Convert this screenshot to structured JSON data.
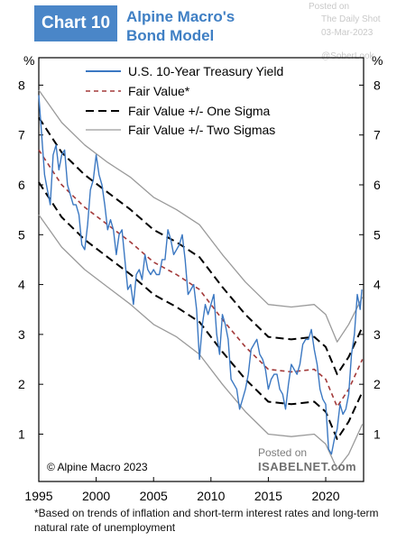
{
  "header": {
    "badge": "Chart 10",
    "title_line1": "Alpine Macro's",
    "title_line2": "Bond Model"
  },
  "watermark": {
    "posted_on": "Posted on",
    "site": "The Daily Shot",
    "date": "03-Mar-2023",
    "handle": "@SoberLook"
  },
  "isabelnet": {
    "posted_on": "Posted on",
    "brand": "ISABELNET.com"
  },
  "footnote": "*Based on trends of inflation and short-term interest rates and long-term natural rate of unemployment",
  "chart_data": {
    "type": "line",
    "title": "Alpine Macro's Bond Model",
    "ylabel_left": "%",
    "ylabel_right": "%",
    "xlim": [
      1995,
      2023.3
    ],
    "ylim": [
      0.05,
      8.55
    ],
    "x_ticks": [
      1995,
      2000,
      2005,
      2010,
      2015,
      2020
    ],
    "y_ticks": [
      1,
      2,
      3,
      4,
      5,
      6,
      7,
      8
    ],
    "source": "© Alpine Macro 2023",
    "legend": [
      {
        "label": "U.S. 10-Year Treasury Yield",
        "color": "#3b78c2",
        "style": "solid"
      },
      {
        "label": "Fair Value*",
        "color": "#a33a3a",
        "style": "dashed"
      },
      {
        "label": "Fair Value +/- One Sigma",
        "color": "#000000",
        "style": "long-dashed"
      },
      {
        "label": "Fair Value +/- Two Sigmas",
        "color": "#9a9a9a",
        "style": "solid"
      }
    ],
    "series": [
      {
        "name": "U.S. 10-Year Treasury Yield",
        "x": [
          1995.0,
          1995.25,
          1995.5,
          1995.75,
          1996.0,
          1996.25,
          1996.5,
          1996.75,
          1997.0,
          1997.25,
          1997.5,
          1997.75,
          1998.0,
          1998.25,
          1998.5,
          1998.75,
          1999.0,
          1999.25,
          1999.5,
          1999.75,
          2000.0,
          2000.25,
          2000.5,
          2000.75,
          2001.0,
          2001.25,
          2001.5,
          2001.75,
          2002.0,
          2002.25,
          2002.5,
          2002.75,
          2003.0,
          2003.25,
          2003.5,
          2003.75,
          2004.0,
          2004.25,
          2004.5,
          2004.75,
          2005.0,
          2005.25,
          2005.5,
          2005.75,
          2006.0,
          2006.25,
          2006.5,
          2006.75,
          2007.0,
          2007.25,
          2007.5,
          2007.75,
          2008.0,
          2008.25,
          2008.5,
          2008.75,
          2009.0,
          2009.25,
          2009.5,
          2009.75,
          2010.0,
          2010.25,
          2010.5,
          2010.75,
          2011.0,
          2011.25,
          2011.5,
          2011.75,
          2012.0,
          2012.25,
          2012.5,
          2012.75,
          2013.0,
          2013.25,
          2013.5,
          2013.75,
          2014.0,
          2014.25,
          2014.5,
          2014.75,
          2015.0,
          2015.25,
          2015.5,
          2015.75,
          2016.0,
          2016.25,
          2016.5,
          2016.75,
          2017.0,
          2017.25,
          2017.5,
          2017.75,
          2018.0,
          2018.25,
          2018.5,
          2018.75,
          2019.0,
          2019.25,
          2019.5,
          2019.75,
          2020.0,
          2020.25,
          2020.5,
          2020.75,
          2021.0,
          2021.25,
          2021.5,
          2021.75,
          2022.0,
          2022.25,
          2022.5,
          2022.75,
          2023.0,
          2023.15
        ],
        "values": [
          7.8,
          7.0,
          6.2,
          5.9,
          5.6,
          6.6,
          6.8,
          6.3,
          6.6,
          6.7,
          6.0,
          5.8,
          5.6,
          5.6,
          5.4,
          4.8,
          4.7,
          5.2,
          5.9,
          6.1,
          6.6,
          6.2,
          6.0,
          5.6,
          5.1,
          5.3,
          5.1,
          4.6,
          5.0,
          5.1,
          4.5,
          3.9,
          4.0,
          3.6,
          4.2,
          4.3,
          4.1,
          4.6,
          4.3,
          4.2,
          4.3,
          4.2,
          4.2,
          4.5,
          4.5,
          5.1,
          4.9,
          4.6,
          4.7,
          4.8,
          5.0,
          4.5,
          3.8,
          3.9,
          4.0,
          3.5,
          2.5,
          3.2,
          3.6,
          3.4,
          3.6,
          3.8,
          3.0,
          2.6,
          3.4,
          3.2,
          2.9,
          2.1,
          2.0,
          1.9,
          1.5,
          1.7,
          1.9,
          2.2,
          2.7,
          2.8,
          2.9,
          2.6,
          2.5,
          2.3,
          1.9,
          2.1,
          2.2,
          2.2,
          1.9,
          1.8,
          1.5,
          2.0,
          2.4,
          2.3,
          2.2,
          2.4,
          2.8,
          2.9,
          2.9,
          3.1,
          2.7,
          2.4,
          1.9,
          1.7,
          1.6,
          0.7,
          0.6,
          0.9,
          1.1,
          1.6,
          1.4,
          1.5,
          1.8,
          2.6,
          3.0,
          3.8,
          3.5,
          3.9
        ]
      },
      {
        "name": "Fair Value*",
        "x": [
          1995,
          1997,
          1999,
          2001,
          2003,
          2005,
          2007,
          2009,
          2011,
          2013,
          2015,
          2017,
          2019,
          2020,
          2021,
          2022,
          2023.2
        ],
        "values": [
          6.7,
          6.0,
          5.55,
          5.2,
          4.85,
          4.45,
          4.2,
          3.9,
          3.3,
          2.75,
          2.3,
          2.25,
          2.3,
          2.1,
          1.55,
          1.9,
          2.5
        ]
      },
      {
        "name": "Fair Value +1 Sigma",
        "x": [
          1995,
          1997,
          1999,
          2001,
          2003,
          2005,
          2007,
          2009,
          2011,
          2013,
          2015,
          2017,
          2019,
          2020,
          2021,
          2022,
          2023.2
        ],
        "values": [
          7.35,
          6.65,
          6.2,
          5.85,
          5.5,
          5.1,
          4.85,
          4.55,
          3.95,
          3.4,
          2.95,
          2.9,
          2.95,
          2.75,
          2.2,
          2.55,
          3.15
        ]
      },
      {
        "name": "Fair Value -1 Sigma",
        "x": [
          1995,
          1997,
          1999,
          2001,
          2003,
          2005,
          2007,
          2009,
          2011,
          2013,
          2015,
          2017,
          2019,
          2020,
          2021,
          2022,
          2023.2
        ],
        "values": [
          6.05,
          5.35,
          4.9,
          4.55,
          4.2,
          3.8,
          3.55,
          3.25,
          2.65,
          2.1,
          1.65,
          1.6,
          1.65,
          1.45,
          0.9,
          1.25,
          1.85
        ]
      },
      {
        "name": "Fair Value +2 Sigmas",
        "x": [
          1995,
          1997,
          1999,
          2001,
          2003,
          2005,
          2007,
          2009,
          2011,
          2013,
          2015,
          2017,
          2019,
          2020,
          2021,
          2022,
          2023.2
        ],
        "values": [
          7.9,
          7.25,
          6.8,
          6.45,
          6.15,
          5.75,
          5.5,
          5.2,
          4.6,
          4.05,
          3.6,
          3.55,
          3.6,
          3.4,
          2.85,
          3.2,
          3.75
        ]
      },
      {
        "name": "Fair Value -2 Sigmas",
        "x": [
          1995,
          1997,
          1999,
          2001,
          2003,
          2005,
          2007,
          2009,
          2011,
          2013,
          2015,
          2017,
          2019,
          2020,
          2021,
          2022,
          2023.2
        ],
        "values": [
          5.4,
          4.75,
          4.3,
          3.95,
          3.6,
          3.2,
          2.95,
          2.6,
          2.0,
          1.45,
          1.0,
          0.95,
          1.0,
          0.8,
          0.3,
          0.6,
          1.2
        ]
      }
    ]
  }
}
